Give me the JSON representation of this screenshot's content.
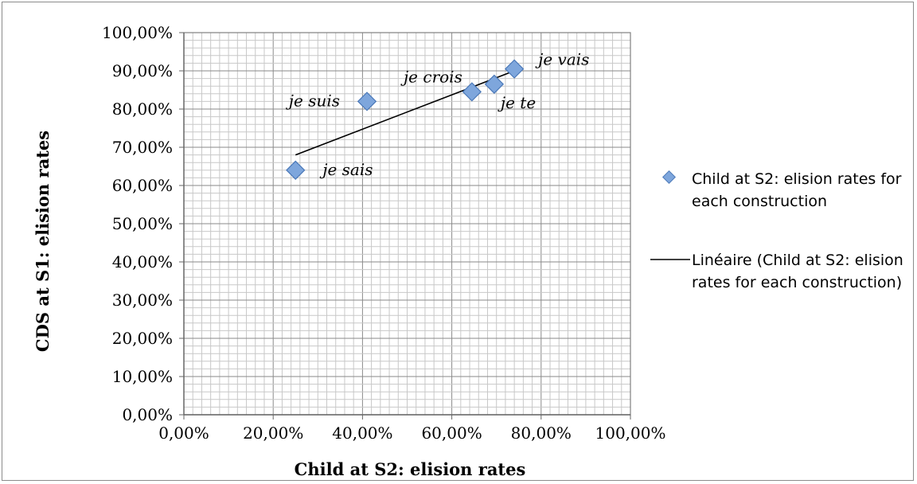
{
  "chart_data": {
    "type": "scatter",
    "xlabel": "Child at S2: elision rates",
    "ylabel": "CDS at S1: elision rates",
    "xlim": [
      0,
      1
    ],
    "ylim": [
      0,
      1
    ],
    "x_tick_labels": [
      "0,00%",
      "20,00%",
      "40,00%",
      "60,00%",
      "80,00%",
      "100,00%"
    ],
    "y_tick_labels": [
      "0,00%",
      "10,00%",
      "20,00%",
      "30,00%",
      "40,00%",
      "50,00%",
      "60,00%",
      "70,00%",
      "80,00%",
      "90,00%",
      "100,00%"
    ],
    "grid": true,
    "legend_position": "right",
    "series": [
      {
        "name": "Child at S2: elision rates for each construction",
        "marker": "diamond",
        "color": "#6f9bd4",
        "points": [
          {
            "label": "je sais",
            "x": 0.25,
            "y": 0.64
          },
          {
            "label": "je suis",
            "x": 0.41,
            "y": 0.82
          },
          {
            "label": "je crois",
            "x": 0.645,
            "y": 0.845
          },
          {
            "label": "je te",
            "x": 0.695,
            "y": 0.865
          },
          {
            "label": "je vais",
            "x": 0.74,
            "y": 0.905
          }
        ]
      }
    ],
    "trendline": {
      "name": "Linéaire (Child at S2: elision rates for each construction)",
      "type": "linear",
      "color": "#000000",
      "from": {
        "x": 0.25,
        "y": 0.68
      },
      "to": {
        "x": 0.74,
        "y": 0.9
      }
    }
  }
}
